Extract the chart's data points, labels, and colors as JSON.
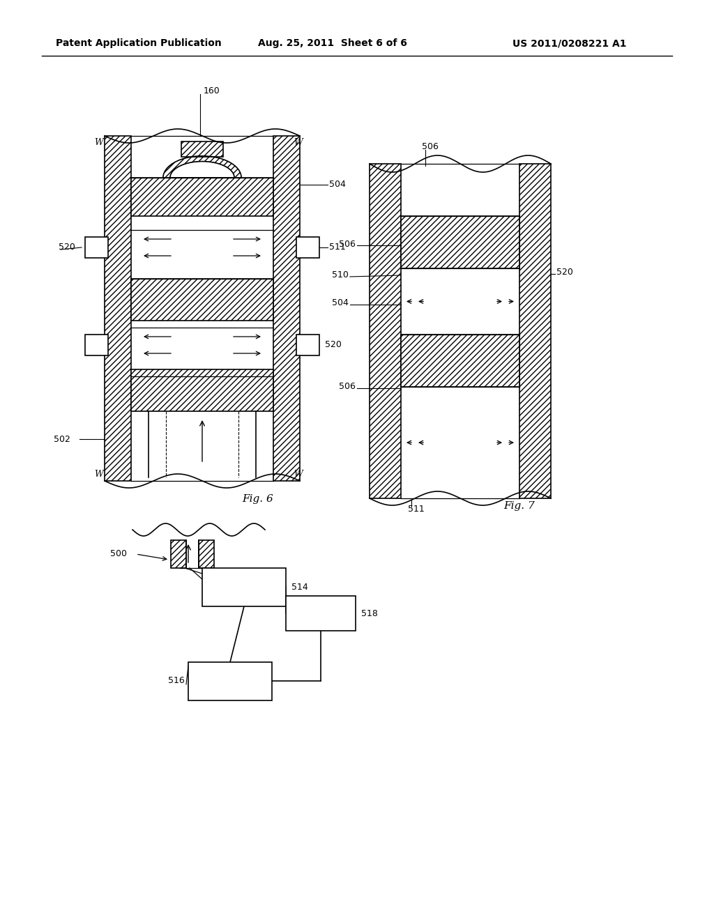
{
  "bg_color": "#ffffff",
  "header_text": "Patent Application Publication",
  "header_date": "Aug. 25, 2011  Sheet 6 of 6",
  "header_patent": "US 2011/0208221 A1",
  "fig6_label": "Fig. 6",
  "fig7_label": "Fig. 7",
  "page_width": 1.0,
  "page_height": 1.0
}
